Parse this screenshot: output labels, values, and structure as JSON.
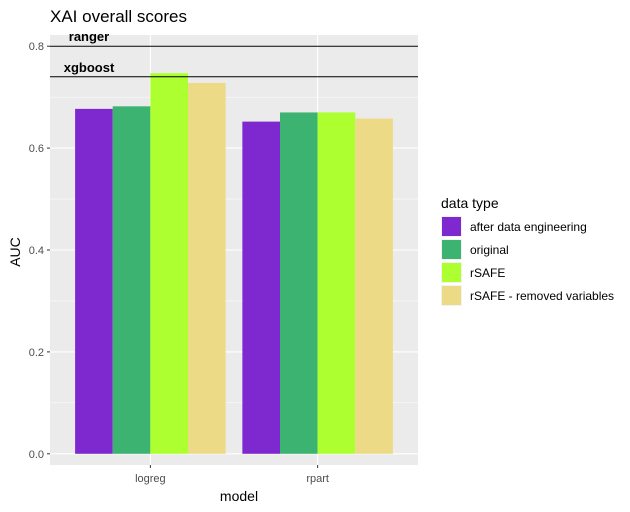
{
  "chart_data": {
    "type": "bar",
    "title": "XAI overall scores",
    "xlabel": "model",
    "ylabel": "AUC",
    "categories": [
      "logreg",
      "rpart"
    ],
    "series": [
      {
        "name": "after data engineering",
        "color": "#7E28CF",
        "values": [
          0.677,
          0.652
        ]
      },
      {
        "name": "original",
        "color": "#3CB371",
        "values": [
          0.682,
          0.67
        ]
      },
      {
        "name": "rSAFE",
        "color": "#ADFF2F",
        "values": [
          0.747,
          0.67
        ]
      },
      {
        "name": "rSAFE - removed variables",
        "color": "#EDDA87",
        "values": [
          0.728,
          0.658
        ]
      }
    ],
    "reference_lines": [
      {
        "label": "ranger",
        "value": 0.8
      },
      {
        "label": "xgboost",
        "value": 0.74
      }
    ],
    "legend_title": "data type",
    "legend_position": "right",
    "ylim": [
      -0.022,
      0.822
    ],
    "yticks": [
      0.0,
      0.2,
      0.4,
      0.6,
      0.8
    ],
    "ytick_labels": [
      "0.0",
      "0.2",
      "0.4",
      "0.6",
      "0.8"
    ],
    "grid": true,
    "panel_background": "#EBEBEB"
  }
}
